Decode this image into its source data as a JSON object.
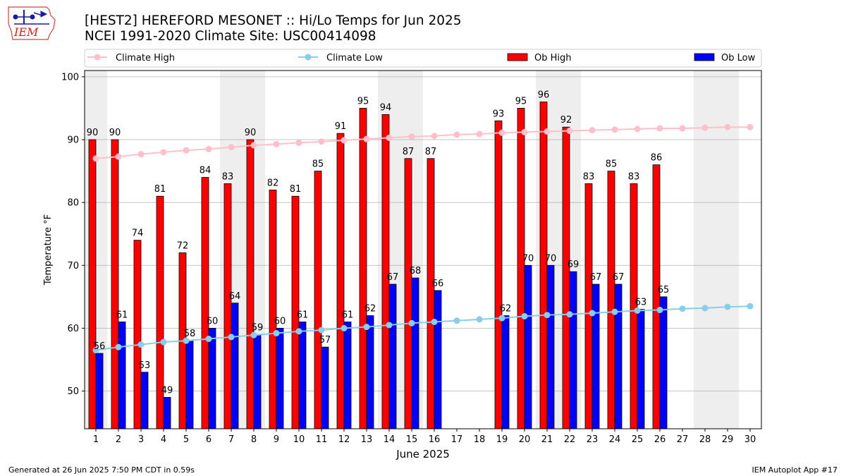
{
  "logo": {
    "text": "IEM"
  },
  "footer": {
    "generated": "Generated at 26 Jun 2025 7:50 PM CDT in 0.59s",
    "app": "IEM Autoplot App #17"
  },
  "colors": {
    "ob_high": "#ff0000",
    "ob_low": "#0000ff",
    "climate_high": "#ffc0cb",
    "climate_low": "#87ceeb",
    "weekend_band": "#eeeeee",
    "grid": "#b0b0b0"
  },
  "chart_data": {
    "type": "bar",
    "title": "[HEST2] HEREFORD MESONET :: Hi/Lo Temps for Jun 2025",
    "subtitle": "NCEI 1991-2020 Climate Site: USC00414098",
    "xlabel": "June 2025",
    "ylabel": "Temperature °F",
    "ylim": [
      44,
      101
    ],
    "yticks": [
      50,
      60,
      70,
      80,
      90,
      100
    ],
    "grid": true,
    "legend": "top",
    "categories": [
      "1",
      "2",
      "3",
      "4",
      "5",
      "6",
      "7",
      "8",
      "9",
      "10",
      "11",
      "12",
      "13",
      "14",
      "15",
      "16",
      "17",
      "18",
      "19",
      "20",
      "21",
      "22",
      "23",
      "24",
      "25",
      "26",
      "27",
      "28",
      "29",
      "30"
    ],
    "weekend_bands": [
      [
        1,
        1
      ],
      [
        7,
        8
      ],
      [
        14,
        15
      ],
      [
        21,
        22
      ],
      [
        28,
        29
      ]
    ],
    "series": [
      {
        "name": "Ob High",
        "type": "bar",
        "values": [
          90,
          90,
          74,
          81,
          72,
          84,
          83,
          90,
          82,
          81,
          85,
          91,
          95,
          94,
          87,
          87,
          null,
          null,
          93,
          95,
          96,
          92,
          83,
          85,
          83,
          86,
          null,
          null,
          null,
          null
        ]
      },
      {
        "name": "Ob Low",
        "type": "bar",
        "values": [
          56,
          61,
          53,
          49,
          58,
          60,
          64,
          59,
          60,
          61,
          57,
          61,
          62,
          67,
          68,
          66,
          null,
          null,
          62,
          70,
          70,
          69,
          67,
          67,
          63,
          65,
          null,
          null,
          null,
          null
        ]
      },
      {
        "name": "Climate High",
        "type": "line",
        "values": [
          87.0,
          87.3,
          87.7,
          88.0,
          88.3,
          88.5,
          88.8,
          89.1,
          89.3,
          89.5,
          89.7,
          89.9,
          90.1,
          90.3,
          90.5,
          90.6,
          90.8,
          90.9,
          91.1,
          91.2,
          91.3,
          91.4,
          91.5,
          91.6,
          91.7,
          91.8,
          91.8,
          91.9,
          92.0,
          92.0
        ]
      },
      {
        "name": "Climate Low",
        "type": "line",
        "values": [
          56.5,
          57.0,
          57.4,
          57.8,
          58.0,
          58.3,
          58.6,
          58.9,
          59.2,
          59.5,
          59.7,
          60.0,
          60.2,
          60.5,
          60.8,
          61.0,
          61.2,
          61.4,
          61.6,
          61.9,
          62.1,
          62.2,
          62.4,
          62.6,
          62.8,
          62.9,
          63.1,
          63.2,
          63.4,
          63.5
        ]
      }
    ]
  }
}
